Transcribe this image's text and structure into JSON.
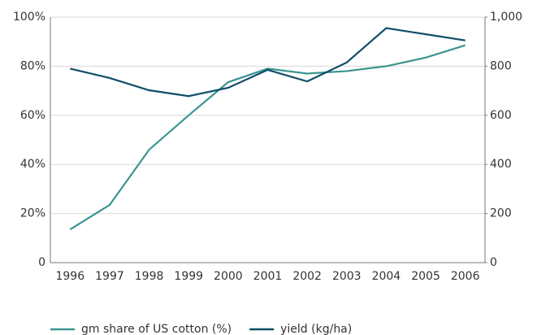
{
  "chart_data": {
    "type": "line",
    "categories": [
      "1996",
      "1997",
      "1998",
      "1999",
      "2000",
      "2001",
      "2002",
      "2003",
      "2004",
      "2005",
      "2006"
    ],
    "series": [
      {
        "name": "gm share of US cotton (%)",
        "color": "#3b9590",
        "values": [
          13.5,
          23.5,
          46,
          60,
          73.5,
          79,
          77,
          78,
          80,
          83.5,
          88.5
        ]
      },
      {
        "name": "yield (kg/ha)",
        "color": "#0f4d69",
        "axis": "y2",
        "values": [
          790,
          752,
          702,
          678,
          712,
          785,
          738,
          815,
          955,
          930,
          905
        ]
      }
    ],
    "ylim": [
      0,
      100
    ],
    "yticks": [
      0,
      {
        "value": 20,
        "label": "20%"
      },
      {
        "value": 40,
        "label": "40%"
      },
      {
        "value": 60,
        "label": "60%"
      },
      {
        "value": 80,
        "label": "80%"
      },
      {
        "value": 100,
        "label": "100%"
      }
    ],
    "y2lim": [
      0,
      1000
    ],
    "y2ticks": [
      0,
      200,
      400,
      600,
      800,
      {
        "value": 1000,
        "label": "1,000"
      }
    ],
    "grid": true,
    "legend": "bottom"
  }
}
